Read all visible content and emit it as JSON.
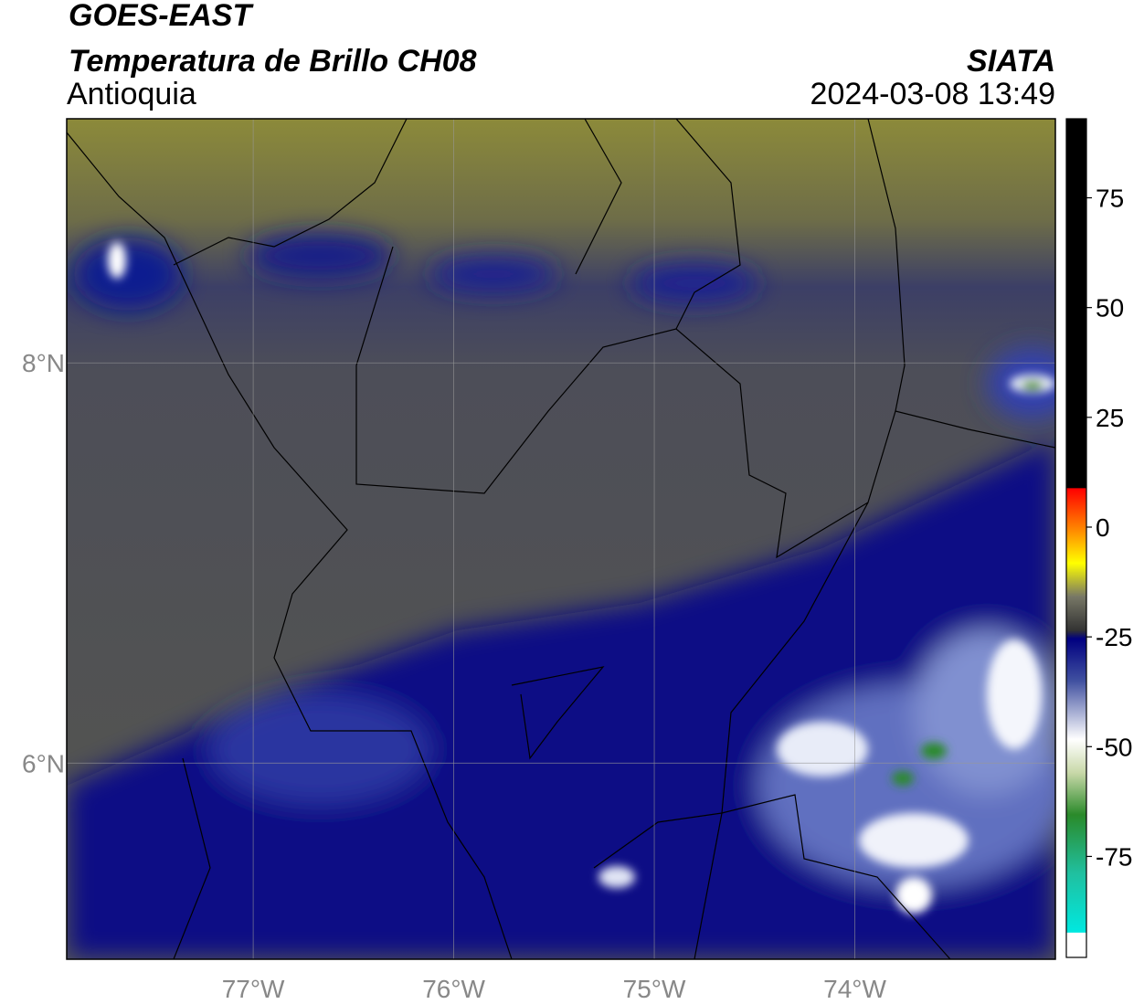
{
  "header": {
    "title": "GOES-EAST",
    "subtitle": "Temperatura de Brillo CH08",
    "region": "Antioquia",
    "source": "SIATA",
    "timestamp": "2024-03-08 13:49"
  },
  "map": {
    "lon_range": [
      -77.93,
      -73.0
    ],
    "lat_range": [
      5.02,
      9.22
    ],
    "lon_ticks": [
      {
        "value": -77,
        "label": "77°W"
      },
      {
        "value": -76,
        "label": "76°W"
      },
      {
        "value": -75,
        "label": "75°W"
      },
      {
        "value": -74,
        "label": "74°W"
      }
    ],
    "lat_ticks": [
      {
        "value": 8,
        "label": "8°N"
      },
      {
        "value": 6,
        "label": "6°N"
      }
    ]
  },
  "colorbar": {
    "range": [
      -98,
      93
    ],
    "ticks": [
      75,
      50,
      25,
      0,
      -25,
      -50,
      -75
    ]
  }
}
